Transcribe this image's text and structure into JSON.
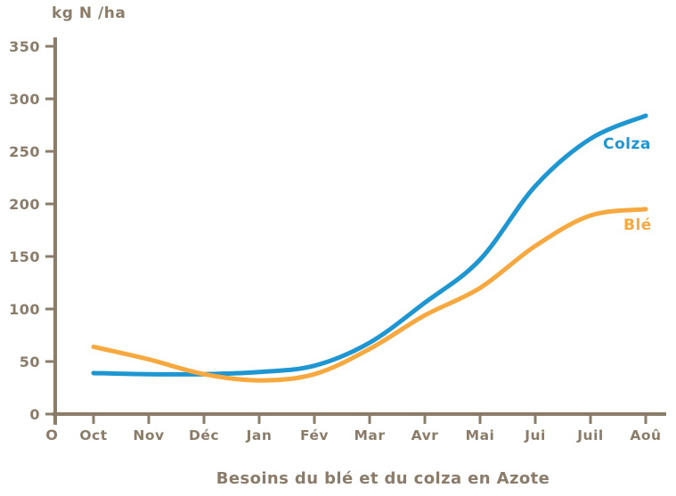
{
  "chart_data": {
    "type": "line",
    "title": "Besoins du blé et du colza en Azote",
    "ylabel": "kg N /ha",
    "xlabel": "",
    "x_origin_label": "O",
    "categories": [
      "Oct",
      "Nov",
      "Déc",
      "Jan",
      "Fév",
      "Mar",
      "Avr",
      "Mai",
      "Jui",
      "Juil",
      "Aoû"
    ],
    "y_ticks": [
      0,
      50,
      100,
      150,
      200,
      250,
      300,
      350
    ],
    "ylim": [
      0,
      350
    ],
    "grid": false,
    "legend_position": "end-of-line",
    "axis_color": "#8B7C6A",
    "series": [
      {
        "key": "colza",
        "name": "Colza",
        "color": "#1E96D2",
        "values": [
          39,
          38,
          38,
          40,
          46,
          68,
          106,
          147,
          217,
          262,
          284
        ]
      },
      {
        "key": "ble",
        "name": "Blé",
        "color": "#F7A83E",
        "values": [
          64,
          52,
          38,
          32,
          38,
          62,
          94,
          120,
          160,
          189,
          195
        ]
      }
    ]
  }
}
